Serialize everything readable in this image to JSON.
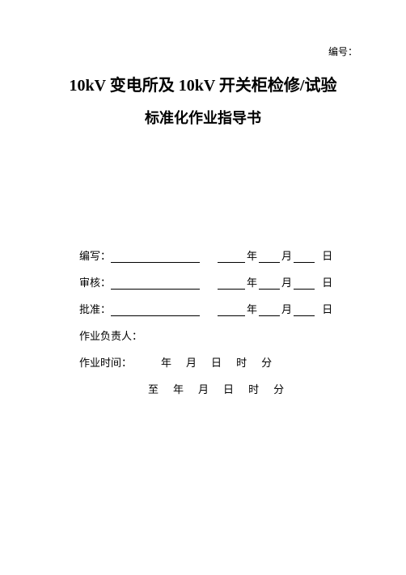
{
  "header": {
    "docNumberLabel": "编号："
  },
  "title": {
    "line1": "10kV 变电所及 10kV 开关柜检修/试验",
    "line2": "标准化作业指导书"
  },
  "fields": {
    "writeLabel": "编写：",
    "reviewLabel": "审核：",
    "approveLabel": "批准：",
    "yearUnit": "年",
    "monthUnit": "月",
    "dayUnit": "日",
    "ownerLabel": "作业负责人：",
    "timeStartLabel": "作业时间：",
    "timeStartYear": "年",
    "timeStartMonth": "月",
    "timeStartDay": "日",
    "timeStartHour": "时",
    "timeStartMin": "分",
    "timeEndLabel": "至",
    "timeEndYear": "年",
    "timeEndMonth": "月",
    "timeEndDay": "日",
    "timeEndHour": "时",
    "timeEndMin": "分"
  },
  "style": {
    "background": "#ffffff",
    "textColor": "#000000",
    "titleFontSize": 20,
    "subtitleFontSize": 18,
    "bodyFontSize": 13
  }
}
